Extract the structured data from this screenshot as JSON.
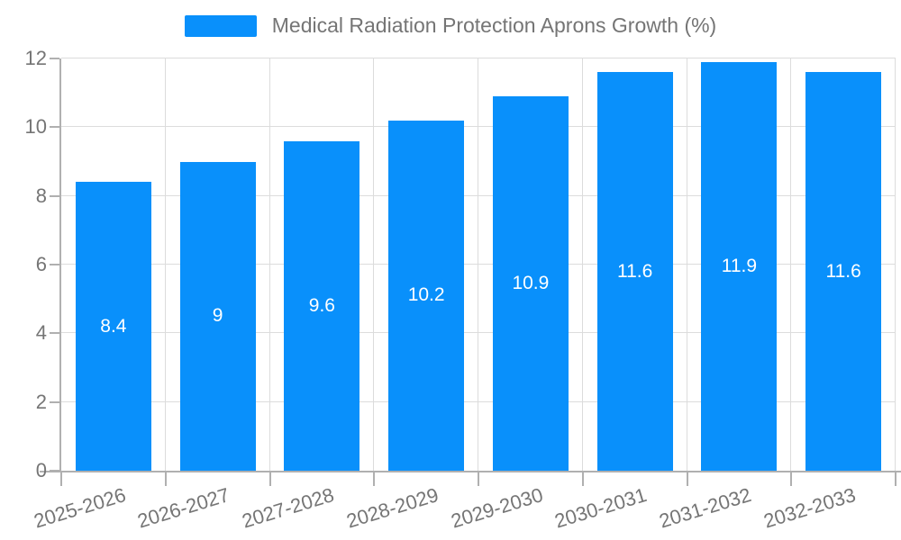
{
  "chart_data": {
    "type": "bar",
    "title": "Medical Radiation Protection Aprons Growth (%)",
    "legend": [
      "Medical Radiation Protection Aprons Growth (%)"
    ],
    "legend_position": "top-center",
    "categories": [
      "2025-2026",
      "2026-2027",
      "2027-2028",
      "2028-2029",
      "2029-2030",
      "2030-2031",
      "2031-2032",
      "2032-2033"
    ],
    "values": [
      8.4,
      9,
      9.6,
      10.2,
      10.9,
      11.6,
      11.9,
      11.6
    ],
    "value_labels": [
      "8.4",
      "9",
      "9.6",
      "10.2",
      "10.9",
      "11.6",
      "11.9",
      "11.6"
    ],
    "xlabel": "",
    "ylabel": "",
    "ylim": [
      0,
      12
    ],
    "yticks": [
      0,
      2,
      4,
      6,
      8,
      10,
      12
    ],
    "grid": true,
    "bar_label_position": "inside-center",
    "x_label_rotation_deg": -17
  },
  "colors": {
    "bar": "#0990fb",
    "grid": "#dcdcdc",
    "axis": "#b0b0b0",
    "text": "#757575",
    "value_label": "#ffffff",
    "background": "#ffffff"
  }
}
